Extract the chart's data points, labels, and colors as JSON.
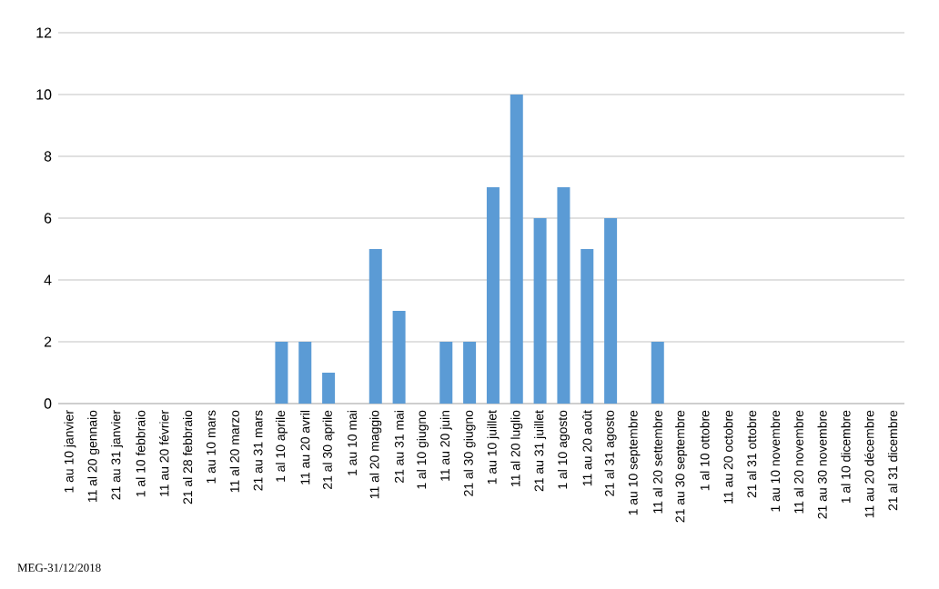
{
  "chart_data": {
    "type": "bar",
    "categories": [
      "1 au 10 janvier",
      "11 al 20 gennaio",
      "21 au 31 janvier",
      "1 al 10 febbraio",
      "11 au 20 février",
      "21 al 28 febbraio",
      "1 au 10 mars",
      "11 al 20 marzo",
      "21 au 31 mars",
      "1 al 10 aprile",
      "11 au 20 avril",
      "21 al 30 aprile",
      "1 au 10 mai",
      "11 al 20 maggio",
      "21 au 31 mai",
      "1 al 10 giugno",
      "11 au 20 juin",
      "21 al 30 giugno",
      "1 au 10 juillet",
      "11 al 20 luglio",
      "21 au 31 juillet",
      "1 al 10 agosto",
      "11 au 20 août",
      "21 al 31 agosto",
      "1 au 10 septembre",
      "11 al 20 settembre",
      "21 au 30 septembre",
      "1 al 10 ottobre",
      "11 au 20 octobre",
      "21 al 31 ottobre",
      "1 au 10 novembre",
      "11 al 20 novembre",
      "21 au 30 novembre",
      "1 al 10 dicembre",
      "11 au 20 décembre",
      "21 al 31 dicembre"
    ],
    "values": [
      0,
      0,
      0,
      0,
      0,
      0,
      0,
      0,
      0,
      2,
      2,
      1,
      0,
      5,
      3,
      0,
      2,
      2,
      7,
      10,
      6,
      7,
      5,
      6,
      0,
      2,
      0,
      0,
      0,
      0,
      0,
      0,
      0,
      0,
      0,
      0
    ],
    "color": "#5b9bd5",
    "ylim": [
      0,
      12
    ],
    "yticks": [
      0,
      2,
      4,
      6,
      8,
      10,
      12
    ],
    "grid": "y",
    "annotations": [
      "MEG-31/12/2018"
    ]
  }
}
